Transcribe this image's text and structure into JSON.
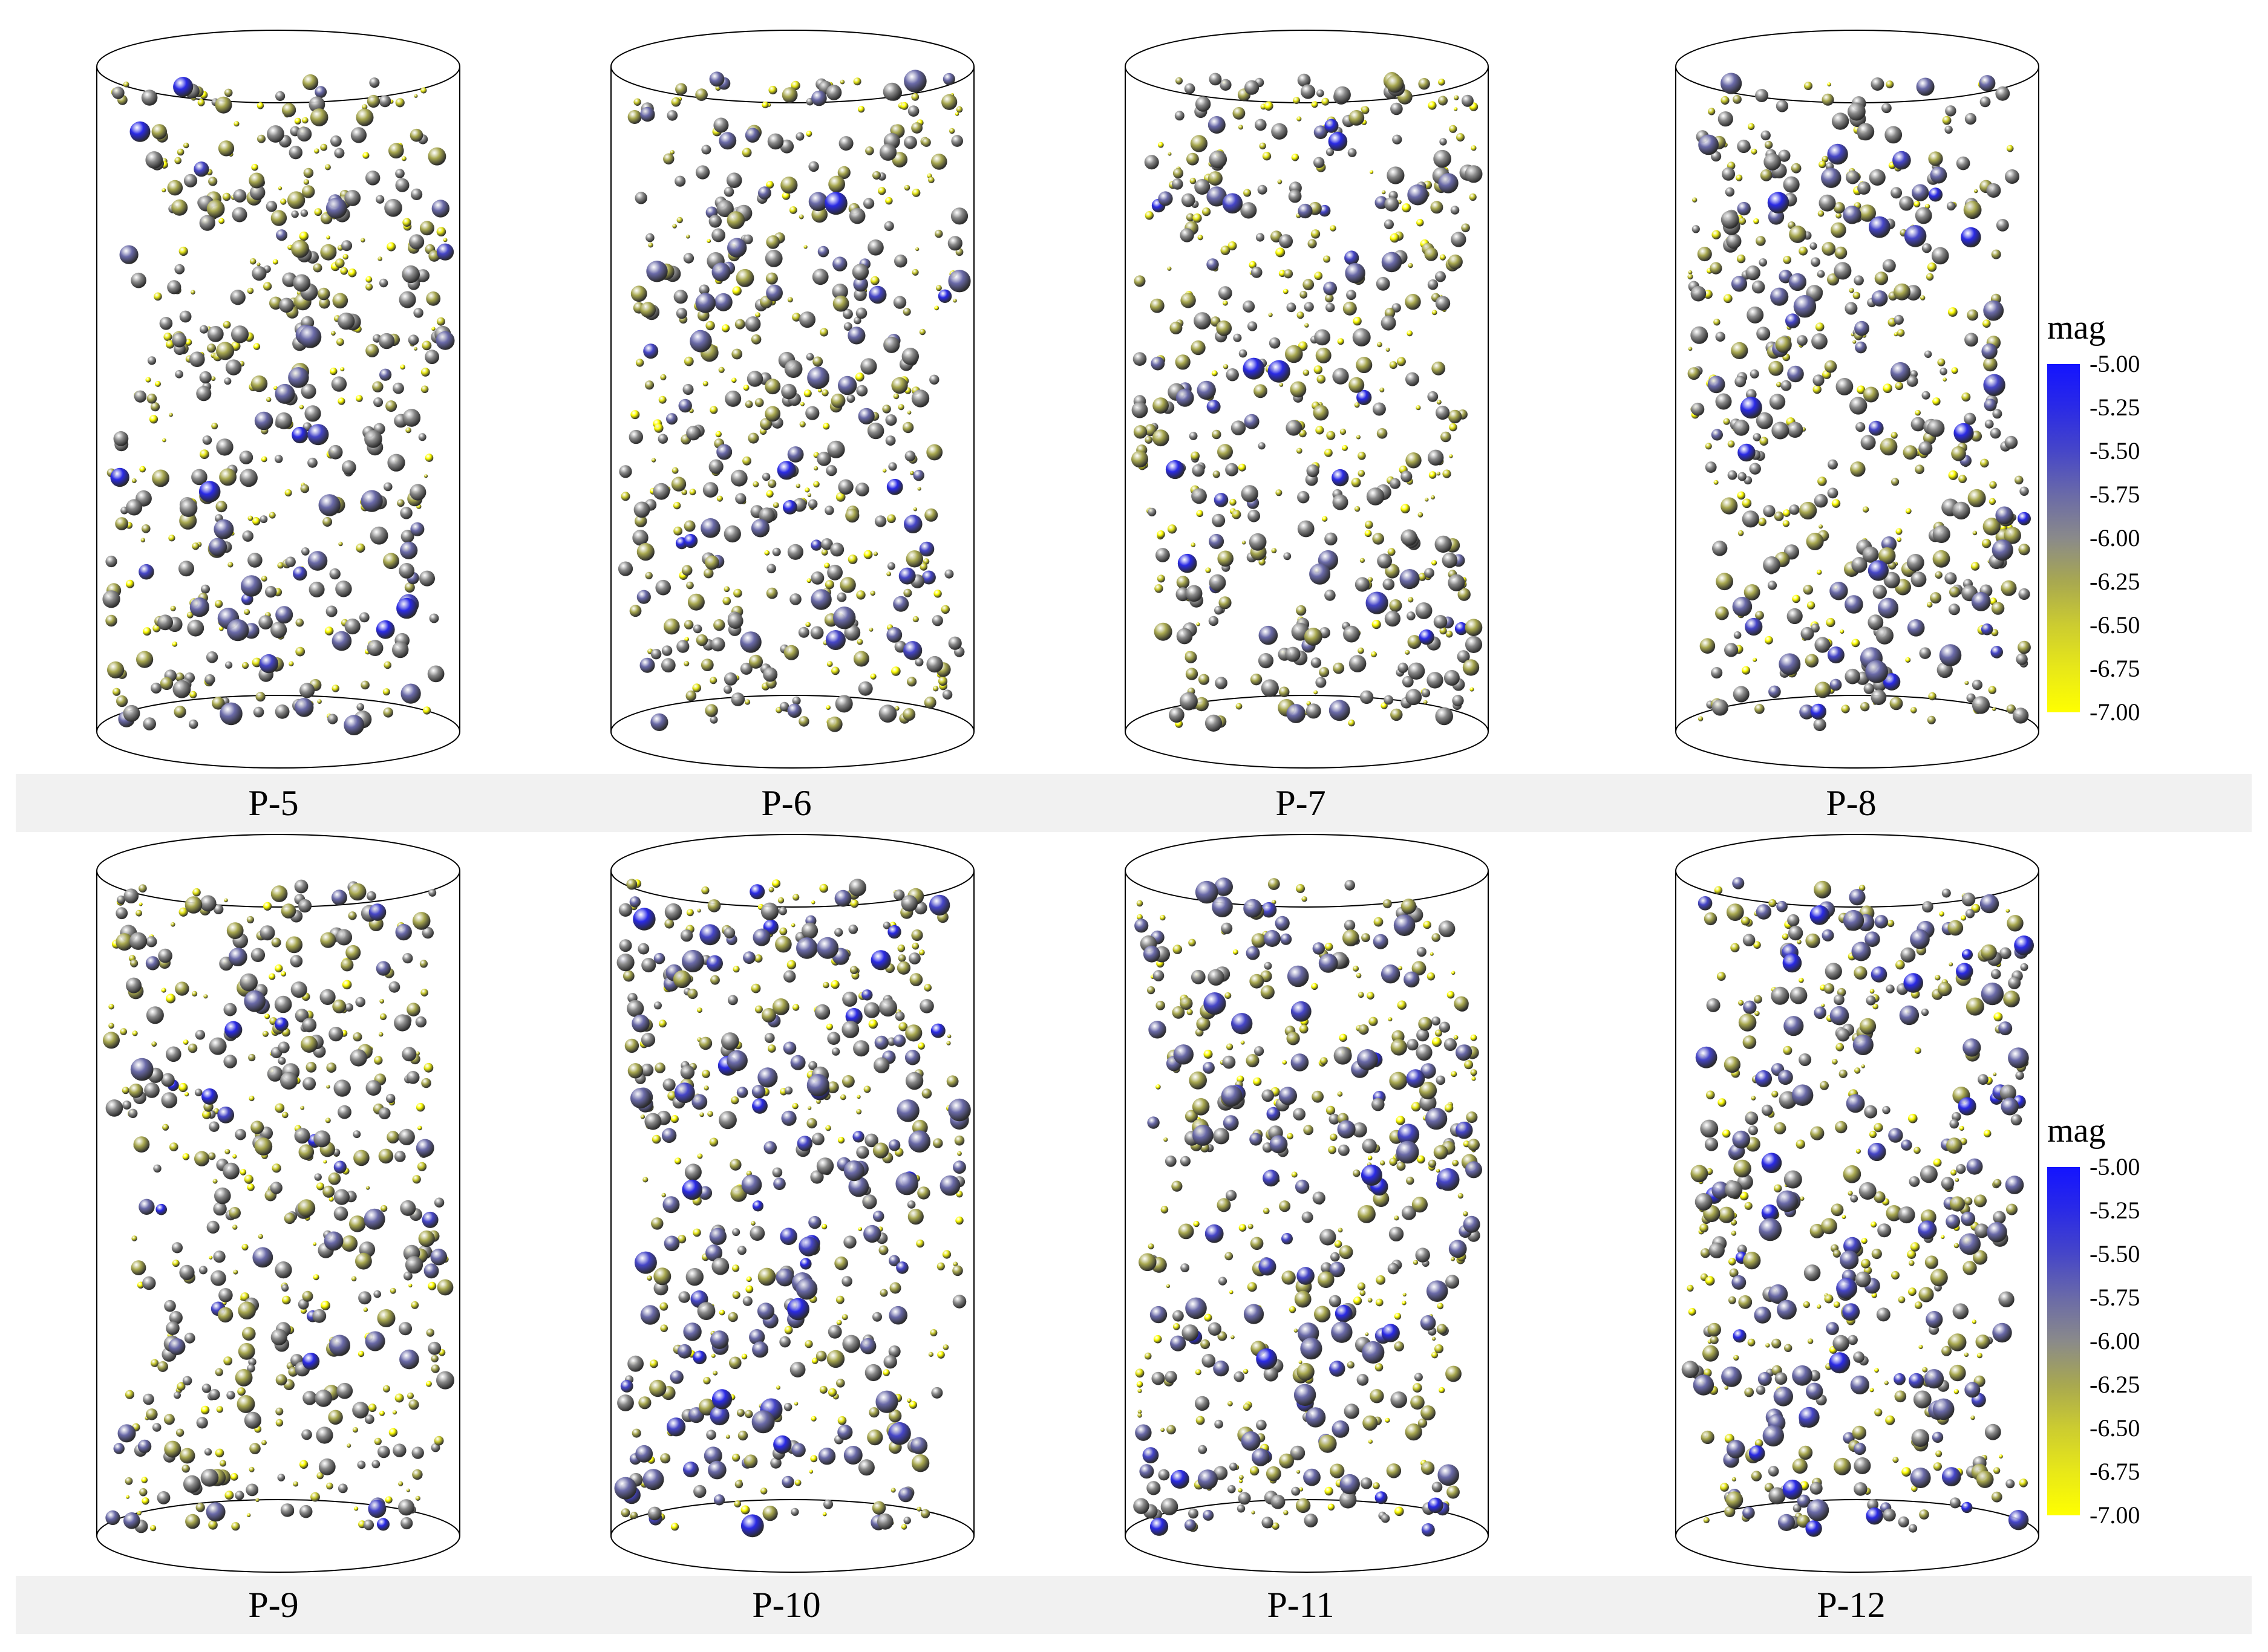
{
  "figure": {
    "rows": [
      {
        "panels": [
          {
            "label": "P-5",
            "seed": 5,
            "blue": 0.1
          },
          {
            "label": "P-6",
            "seed": 6,
            "blue": 0.12
          },
          {
            "label": "P-7",
            "seed": 7,
            "blue": 0.1
          },
          {
            "label": "P-8",
            "seed": 8,
            "blue": 0.13
          }
        ]
      },
      {
        "panels": [
          {
            "label": "P-9",
            "seed": 9,
            "blue": 0.1
          },
          {
            "label": "P-10",
            "seed": 10,
            "blue": 0.22
          },
          {
            "label": "P-11",
            "seed": 11,
            "blue": 0.2
          },
          {
            "label": "P-12",
            "seed": 12,
            "blue": 0.21
          }
        ]
      }
    ]
  },
  "legend": {
    "title": "mag",
    "ticks": [
      "-5.00",
      "-5.25",
      "-5.50",
      "-5.75",
      "-6.00",
      "-6.25",
      "-6.50",
      "-6.75",
      "-7.00"
    ],
    "colors": [
      "#1414ff",
      "#2a2ae6",
      "#4646c8",
      "#6a6aa8",
      "#8a8a8a",
      "#a8a850",
      "#cccc30",
      "#e8e818",
      "#ffff00"
    ]
  }
}
